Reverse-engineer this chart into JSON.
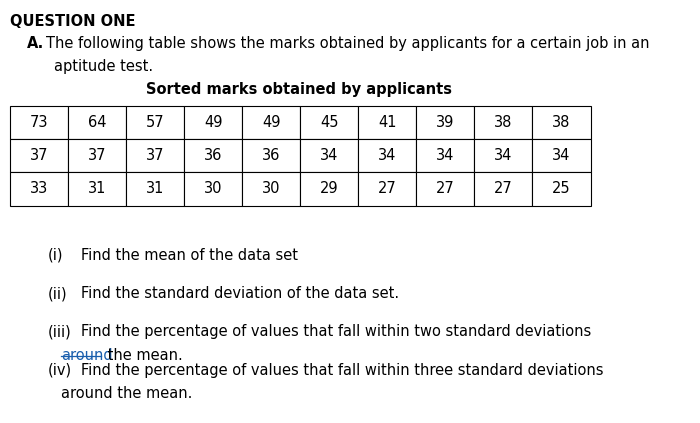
{
  "title": "QUESTION ONE",
  "subtitle_bold": "A.",
  "subtitle_text": "The following table shows the marks obtained by applicants for a certain job in an",
  "subtitle_text2": "aptitude test.",
  "table_title": "Sorted marks obtained by applicants",
  "table_data": [
    [
      73,
      64,
      57,
      49,
      49,
      45,
      41,
      39,
      38,
      38
    ],
    [
      37,
      37,
      37,
      36,
      36,
      34,
      34,
      34,
      34,
      34
    ],
    [
      33,
      31,
      31,
      30,
      30,
      29,
      27,
      27,
      27,
      25
    ]
  ],
  "bg_color": "#ffffff",
  "font_color": "#000000",
  "underline_color": "#1a5fad"
}
